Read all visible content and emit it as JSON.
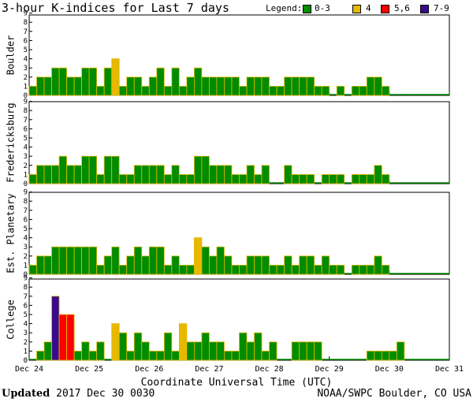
{
  "chart_data": {
    "type": "bar",
    "title": "3-hour K-indices for Last 7 days",
    "legend": {
      "title": "Legend:",
      "entries": [
        {
          "label": "0-3",
          "color": "#008c00"
        },
        {
          "label": "4",
          "color": "#e6b800"
        },
        {
          "label": "5,6",
          "color": "#ff0000"
        },
        {
          "label": "7-9",
          "color": "#3a0a8c"
        }
      ]
    },
    "ylim": [
      0,
      9
    ],
    "y_ticks": [
      "0",
      "1",
      "2",
      "3",
      "4",
      "5",
      "6",
      "7",
      "8",
      "9"
    ],
    "x_tick_labels": [
      "Dec 24",
      "Dec 25",
      "Dec 26",
      "Dec 27",
      "Dec 28",
      "Dec 29",
      "Dec 30",
      "Dec 31"
    ],
    "xlabel": "Coordinate Universal Time (UTC)",
    "interval_hours": 3,
    "series": [
      {
        "name": "Boulder",
        "values": [
          1,
          2,
          2,
          3,
          3,
          2,
          2,
          3,
          3,
          1,
          3,
          4,
          1,
          2,
          2,
          1,
          2,
          3,
          1,
          3,
          1,
          2,
          3,
          2,
          2,
          2,
          2,
          2,
          1,
          2,
          2,
          2,
          1,
          1,
          2,
          2,
          2,
          2,
          1,
          1,
          0,
          1,
          0,
          1,
          1,
          2,
          2,
          1,
          0,
          0,
          0,
          0,
          0,
          0,
          0,
          0
        ]
      },
      {
        "name": "Fredericksburg",
        "values": [
          1,
          2,
          2,
          2,
          3,
          2,
          2,
          3,
          3,
          1,
          3,
          3,
          1,
          1,
          2,
          2,
          2,
          2,
          1,
          2,
          1,
          1,
          3,
          3,
          2,
          2,
          2,
          1,
          1,
          2,
          1,
          2,
          0,
          0,
          2,
          1,
          1,
          1,
          0,
          1,
          1,
          1,
          0,
          1,
          1,
          1,
          2,
          1,
          0,
          0,
          0,
          0,
          0,
          0,
          0,
          0
        ]
      },
      {
        "name": "Est. Planetary",
        "values": [
          1,
          2,
          2,
          3,
          3,
          3,
          3,
          3,
          3,
          1,
          2,
          3,
          1,
          2,
          3,
          2,
          3,
          3,
          1,
          2,
          1,
          1,
          4,
          3,
          2,
          3,
          2,
          1,
          1,
          2,
          2,
          2,
          1,
          1,
          2,
          1,
          2,
          2,
          1,
          2,
          1,
          1,
          0,
          1,
          1,
          1,
          2,
          1,
          0,
          0,
          0,
          0,
          0,
          0,
          0,
          0
        ]
      },
      {
        "name": "College",
        "values": [
          0,
          1,
          2,
          7,
          5,
          5,
          1,
          2,
          1,
          2,
          0,
          4,
          3,
          1,
          3,
          2,
          1,
          1,
          3,
          1,
          4,
          2,
          2,
          3,
          2,
          2,
          1,
          1,
          3,
          2,
          3,
          1,
          2,
          0,
          0,
          2,
          2,
          2,
          2,
          0,
          0,
          0,
          0,
          0,
          0,
          1,
          1,
          1,
          1,
          2,
          0,
          0,
          0,
          0,
          0,
          0
        ]
      }
    ],
    "grid": false
  },
  "footer": {
    "updated_label": "Updated",
    "updated_value": "2017 Dec 30 0030",
    "credit": "NOAA/SWPC Boulder, CO USA"
  }
}
